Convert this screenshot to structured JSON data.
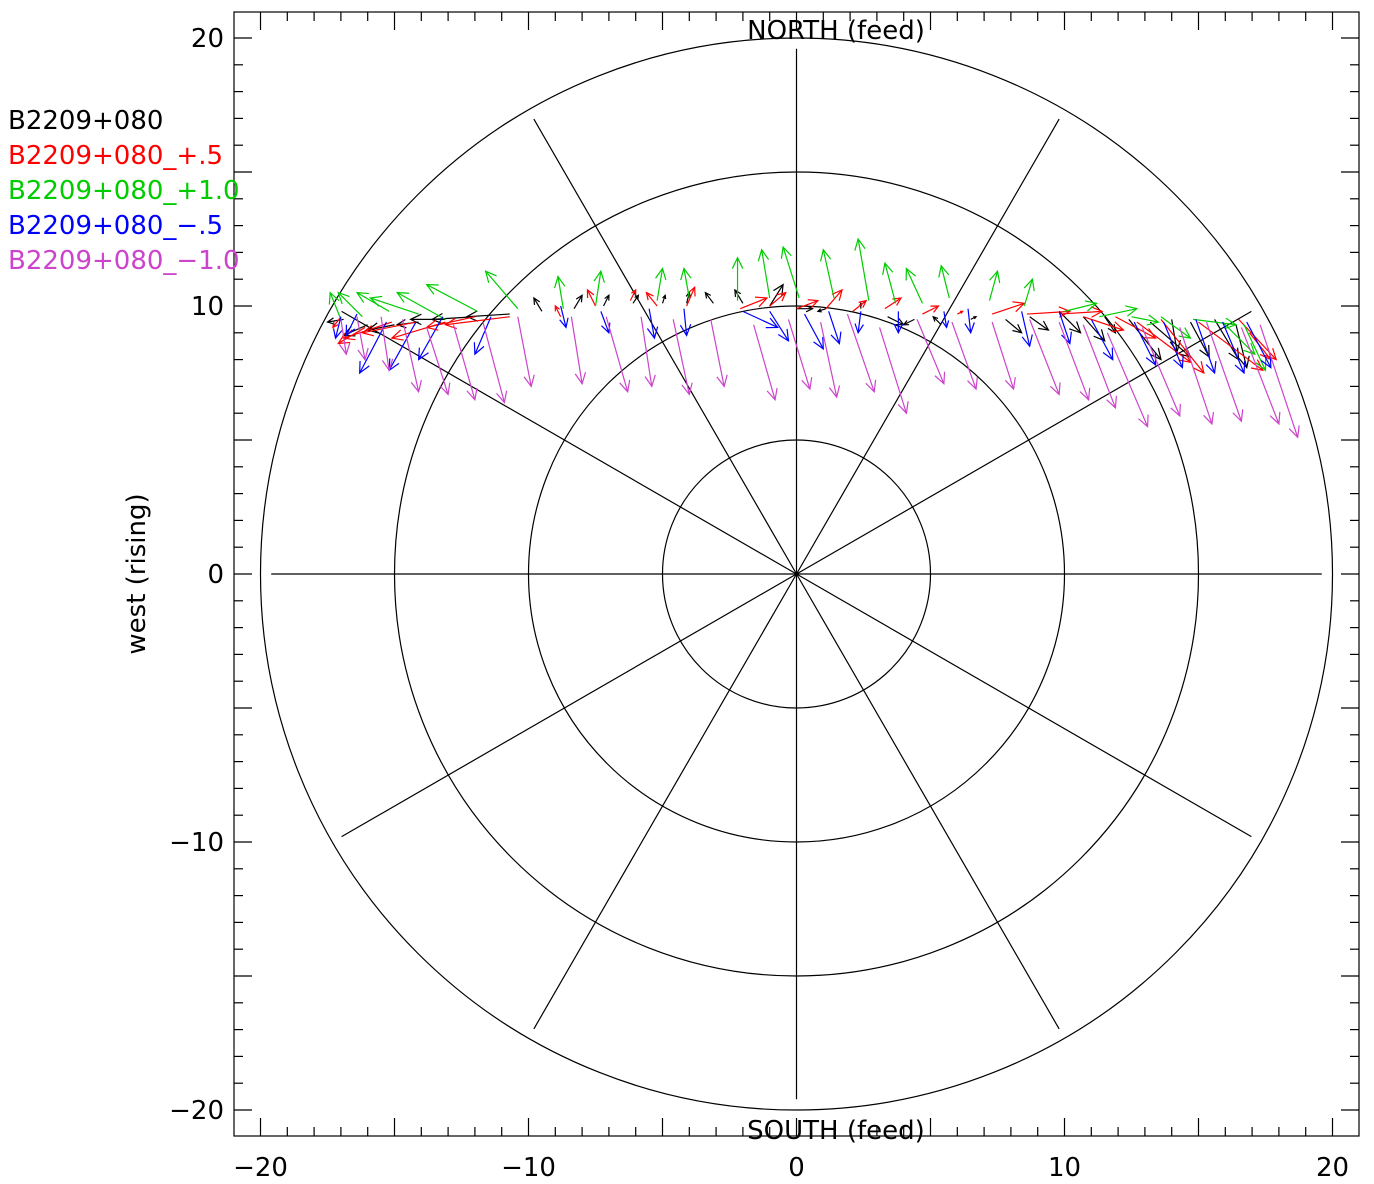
{
  "chart_data": {
    "type": "vector-field",
    "title": "",
    "xlabel": "",
    "ylabel": "west (rising)",
    "top_label": "NORTH (feed)",
    "bottom_label": "SOUTH (feed)",
    "xlim": [
      -21,
      21
    ],
    "ylim": [
      -21,
      21
    ],
    "x_ticks": [
      -20,
      -10,
      0,
      10,
      20
    ],
    "y_ticks": [
      -20,
      -10,
      0,
      10,
      20
    ],
    "x_tick_labels": [
      "−20",
      "−10",
      "0",
      "10",
      "20"
    ],
    "y_tick_labels": [
      "−20",
      "−10",
      "0",
      "10",
      "20"
    ],
    "grid": {
      "rings": [
        5,
        10,
        15,
        20
      ],
      "spokes_deg": [
        0,
        30,
        60,
        90,
        120,
        150,
        180,
        210,
        240,
        270,
        300,
        330
      ],
      "spoke_length": 19.6
    },
    "legend_placement": "top-left outside",
    "series": [
      {
        "name": "B2209+080",
        "color": "#000000",
        "vectors": [
          [
            -16.9,
            9.5,
            -0.6,
            -0.1
          ],
          [
            -16.0,
            9.3,
            -0.9,
            -0.4
          ],
          [
            -15.0,
            9.3,
            -1.0,
            -0.2
          ],
          [
            -14.1,
            9.4,
            -0.8,
            -0.1
          ],
          [
            -13.1,
            9.5,
            -1.3,
            0.0
          ],
          [
            -12.0,
            9.6,
            -1.6,
            -0.1
          ],
          [
            -10.7,
            9.7,
            -1.6,
            -0.1
          ],
          [
            -9.5,
            9.8,
            -0.3,
            0.5
          ],
          [
            -8.3,
            9.9,
            0.3,
            0.5
          ],
          [
            -7.2,
            10.0,
            0.2,
            0.4
          ],
          [
            -6.1,
            10.1,
            0.2,
            0.3
          ],
          [
            -5.0,
            10.1,
            0.1,
            0.3
          ],
          [
            -4.1,
            10.1,
            0.1,
            0.4
          ],
          [
            -3.1,
            10.1,
            -0.3,
            0.4
          ],
          [
            -2.0,
            10.1,
            -0.3,
            0.5
          ],
          [
            -1.0,
            10.0,
            0.5,
            0.8
          ],
          [
            0.0,
            9.9,
            0.6,
            0.0
          ],
          [
            1.1,
            9.9,
            -0.3,
            -0.1
          ],
          [
            2.4,
            9.9,
            0.0,
            0.2
          ],
          [
            3.4,
            9.6,
            0.6,
            -0.3
          ],
          [
            4.4,
            9.5,
            -0.4,
            -0.2
          ],
          [
            5.4,
            9.3,
            -0.3,
            0.3
          ],
          [
            6.5,
            9.5,
            0.2,
            0.1
          ],
          [
            7.8,
            9.5,
            0.6,
            -0.5
          ],
          [
            8.7,
            9.6,
            0.7,
            -0.5
          ],
          [
            9.8,
            9.8,
            0.8,
            -0.8
          ],
          [
            10.7,
            9.6,
            0.8,
            -0.9
          ],
          [
            11.5,
            9.6,
            0.4,
            -0.6
          ],
          [
            12.4,
            9.5,
            1.2,
            -1.5
          ],
          [
            13.2,
            9.4,
            1.5,
            -1.3
          ],
          [
            14.0,
            9.5,
            0.2,
            -1.2
          ],
          [
            14.7,
            9.4,
            0.7,
            -1.3
          ],
          [
            15.6,
            9.5,
            0.9,
            -1.5
          ],
          [
            16.4,
            9.3,
            0.4,
            -1.6
          ]
        ]
      },
      {
        "name": "B2209+080_+.5",
        "color": "#ff0000",
        "vectors": [
          [
            -17.0,
            9.6,
            -0.3,
            -0.4
          ],
          [
            -16.1,
            9.2,
            -1.0,
            -0.6
          ],
          [
            -15.1,
            9.4,
            -1.8,
            -0.6
          ],
          [
            -14.2,
            9.4,
            -2.0,
            -0.4
          ],
          [
            -13.1,
            9.4,
            -2.0,
            -0.6
          ],
          [
            -12.0,
            9.6,
            -1.8,
            -0.4
          ],
          [
            -10.7,
            9.6,
            -2.4,
            -0.3
          ],
          [
            -8.8,
            9.6,
            -0.2,
            0.4
          ],
          [
            -7.5,
            10.0,
            -0.3,
            0.6
          ],
          [
            -6.2,
            10.2,
            0.2,
            0.4
          ],
          [
            -5.2,
            10.0,
            -0.4,
            0.5
          ],
          [
            -4.1,
            10.0,
            0.3,
            0.7
          ],
          [
            -2.1,
            9.9,
            1.0,
            0.4
          ],
          [
            -1.0,
            10.0,
            0.6,
            0.5
          ],
          [
            0.0,
            9.9,
            0.8,
            0.3
          ],
          [
            1.1,
            9.9,
            0.6,
            0.7
          ],
          [
            2.1,
            9.8,
            0.5,
            0.4
          ],
          [
            3.3,
            9.9,
            0.6,
            0.4
          ],
          [
            4.7,
            9.7,
            0.6,
            0.3
          ],
          [
            6.0,
            9.7,
            0.2,
            0.1
          ],
          [
            7.3,
            9.7,
            1.2,
            0.4
          ],
          [
            8.6,
            9.7,
            1.6,
            0.1
          ],
          [
            9.8,
            9.7,
            1.6,
            0.1
          ],
          [
            10.7,
            9.6,
            1.5,
            -0.5
          ],
          [
            11.9,
            9.6,
            1.5,
            -0.8
          ],
          [
            12.7,
            9.4,
            2.0,
            -1.5
          ],
          [
            13.6,
            9.5,
            1.6,
            -2.0
          ],
          [
            15.0,
            9.4,
            2.4,
            -1.8
          ],
          [
            16.5,
            9.5,
            1.4,
            -1.5
          ],
          [
            16.9,
            9.0,
            0.8,
            -1.0
          ]
        ]
      },
      {
        "name": "B2209+080_+1.0",
        "color": "#00cc00",
        "vectors": [
          [
            -17.0,
            9.5,
            -0.4,
            1.0
          ],
          [
            -16.2,
            9.6,
            -0.9,
            0.9
          ],
          [
            -15.2,
            9.8,
            -1.2,
            0.7
          ],
          [
            -14.1,
            9.7,
            -1.8,
            0.6
          ],
          [
            -13.1,
            9.5,
            -1.8,
            1.0
          ],
          [
            -11.9,
            9.8,
            -1.9,
            1.0
          ],
          [
            -10.4,
            9.9,
            -1.2,
            1.4
          ],
          [
            -8.7,
            9.9,
            -0.2,
            1.2
          ],
          [
            -7.5,
            10.0,
            0.2,
            1.3
          ],
          [
            -5.2,
            10.2,
            0.2,
            1.2
          ],
          [
            -4.0,
            10.3,
            -0.2,
            1.1
          ],
          [
            -2.2,
            10.2,
            0.0,
            1.6
          ],
          [
            -1.0,
            10.3,
            -0.3,
            1.8
          ],
          [
            0.1,
            10.3,
            -0.6,
            1.9
          ],
          [
            1.4,
            10.3,
            -0.4,
            1.8
          ],
          [
            2.7,
            10.2,
            -0.4,
            2.3
          ],
          [
            3.7,
            10.1,
            -0.4,
            1.5
          ],
          [
            4.7,
            10.1,
            -0.6,
            1.3
          ],
          [
            5.7,
            10.3,
            -0.3,
            1.2
          ],
          [
            7.2,
            10.2,
            0.3,
            1.1
          ],
          [
            8.5,
            10.0,
            0.3,
            1.0
          ],
          [
            10.0,
            9.8,
            1.2,
            0.3
          ],
          [
            11.3,
            9.6,
            1.4,
            0.3
          ],
          [
            12.5,
            9.6,
            1.0,
            -0.2
          ],
          [
            13.6,
            9.6,
            1.1,
            -0.8
          ],
          [
            14.8,
            9.5,
            1.6,
            -0.2
          ],
          [
            15.9,
            9.4,
            1.2,
            -1.2
          ],
          [
            16.7,
            9.3,
            0.8,
            -1.7
          ]
        ]
      },
      {
        "name": "B2209+080_−.5",
        "color": "#0000ff",
        "vectors": [
          [
            -17.0,
            9.6,
            -0.2,
            -0.8
          ],
          [
            -16.4,
            9.7,
            -0.4,
            -0.8
          ],
          [
            -15.3,
            9.4,
            -1.0,
            -1.9
          ],
          [
            -14.2,
            9.4,
            -1.0,
            -1.8
          ],
          [
            -13.2,
            9.6,
            -0.9,
            -1.6
          ],
          [
            -11.4,
            9.6,
            -0.6,
            -1.4
          ],
          [
            -8.8,
            10.0,
            0.2,
            -0.8
          ],
          [
            -7.3,
            9.8,
            0.3,
            -0.8
          ],
          [
            -5.5,
            9.9,
            0.2,
            -1.1
          ],
          [
            -4.2,
            9.9,
            0.1,
            -1.0
          ],
          [
            -2.0,
            9.8,
            1.3,
            -0.6
          ],
          [
            -1.0,
            9.8,
            0.7,
            -1.1
          ],
          [
            0.3,
            9.7,
            0.7,
            -1.3
          ],
          [
            1.2,
            9.8,
            0.4,
            -1.2
          ],
          [
            2.4,
            9.8,
            -0.1,
            -0.8
          ],
          [
            3.8,
            9.8,
            0.0,
            -0.8
          ],
          [
            5.5,
            9.8,
            0.1,
            -0.6
          ],
          [
            6.4,
            9.9,
            0.1,
            -0.9
          ],
          [
            8.4,
            9.8,
            0.3,
            -1.3
          ],
          [
            9.8,
            9.8,
            0.4,
            -1.2
          ],
          [
            11.0,
            9.5,
            0.8,
            -1.5
          ],
          [
            12.6,
            9.4,
            0.8,
            -1.6
          ],
          [
            13.7,
            9.4,
            0.7,
            -1.7
          ],
          [
            14.9,
            9.5,
            0.7,
            -2.0
          ],
          [
            15.9,
            9.4,
            0.8,
            -1.9
          ],
          [
            16.8,
            9.4,
            0.9,
            -1.7
          ]
        ]
      },
      {
        "name": "B2209+080_−1.0",
        "color": "#cc44cc",
        "vectors": [
          [
            -17.0,
            9.5,
            0.2,
            -1.3
          ],
          [
            -16.4,
            9.6,
            0.3,
            -1.6
          ],
          [
            -15.5,
            9.6,
            0.3,
            -2.0
          ],
          [
            -14.7,
            9.5,
            0.6,
            -2.7
          ],
          [
            -13.8,
            9.2,
            0.8,
            -2.5
          ],
          [
            -12.8,
            9.3,
            0.8,
            -2.8
          ],
          [
            -11.7,
            9.4,
            0.8,
            -3.0
          ],
          [
            -10.4,
            9.6,
            0.5,
            -2.6
          ],
          [
            -8.4,
            9.6,
            0.4,
            -2.5
          ],
          [
            -7.1,
            9.6,
            0.8,
            -2.8
          ],
          [
            -5.8,
            9.6,
            0.4,
            -2.6
          ],
          [
            -4.6,
            9.5,
            0.6,
            -2.8
          ],
          [
            -3.2,
            9.5,
            0.5,
            -2.5
          ],
          [
            -1.6,
            9.3,
            0.8,
            -2.8
          ],
          [
            -0.3,
            9.5,
            0.8,
            -2.6
          ],
          [
            0.9,
            9.4,
            0.6,
            -2.8
          ],
          [
            1.9,
            9.7,
            1.0,
            -2.9
          ],
          [
            3.1,
            9.2,
            1.0,
            -3.2
          ],
          [
            4.5,
            9.5,
            1.0,
            -2.4
          ],
          [
            5.8,
            9.4,
            0.9,
            -2.5
          ],
          [
            7.3,
            9.4,
            0.8,
            -2.5
          ],
          [
            8.7,
            9.5,
            1.1,
            -2.8
          ],
          [
            9.8,
            9.4,
            1.1,
            -2.9
          ],
          [
            10.7,
            9.3,
            1.2,
            -3.1
          ],
          [
            11.6,
            9.0,
            1.5,
            -3.5
          ],
          [
            12.9,
            9.2,
            1.4,
            -3.3
          ],
          [
            14.3,
            9.2,
            1.2,
            -3.6
          ],
          [
            15.3,
            9.4,
            1.3,
            -3.7
          ],
          [
            16.6,
            9.2,
            1.4,
            -3.6
          ],
          [
            17.3,
            9.3,
            1.4,
            -4.2
          ]
        ]
      }
    ]
  }
}
